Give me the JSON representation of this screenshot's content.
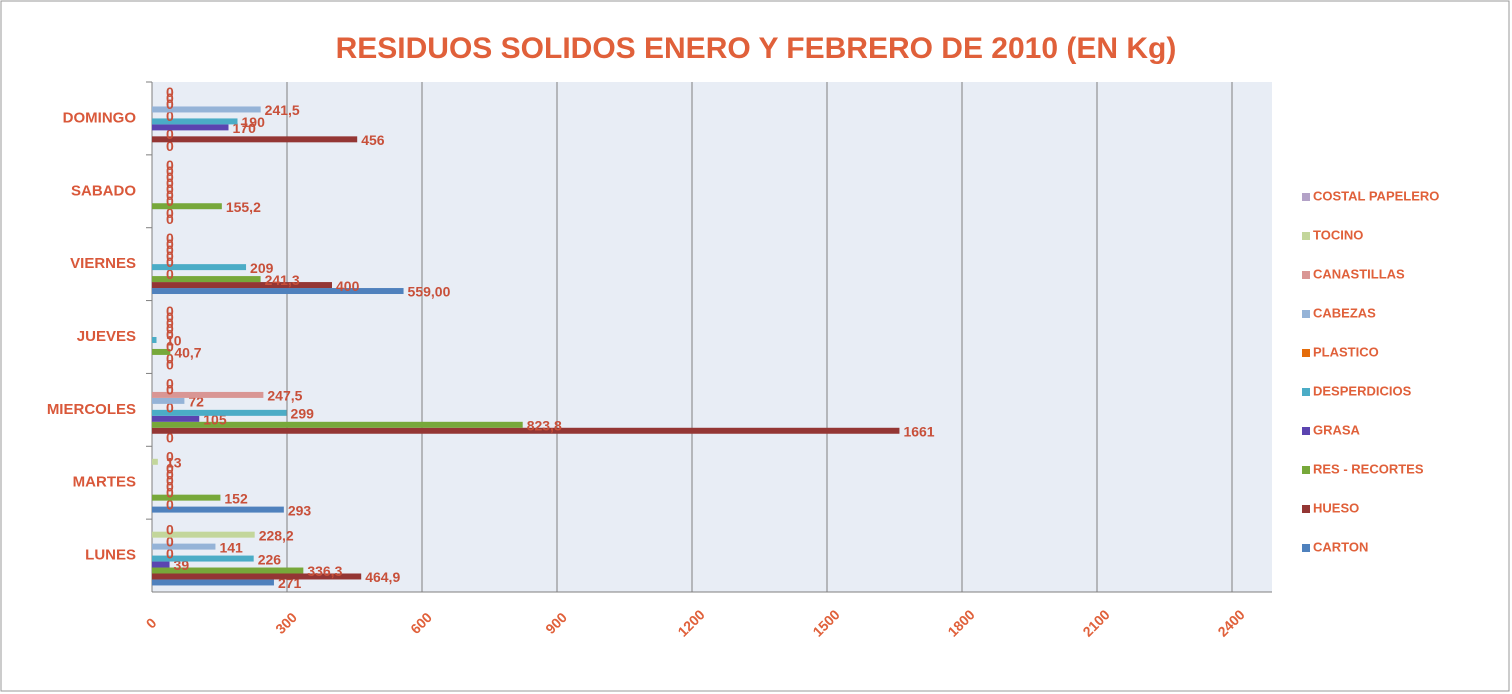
{
  "chart_data": {
    "type": "barh",
    "title": "RESIDUOS SOLIDOS ENERO Y FEBRERO DE 2010 (EN Kg)",
    "categories": [
      "LUNES",
      "MARTES",
      "MIERCOLES",
      "JUEVES",
      "VIERNES",
      "SABADO",
      "DOMINGO"
    ],
    "series": [
      {
        "name": "CARTON",
        "color": "#4f81bd",
        "values": [
          271,
          293,
          0,
          0,
          559,
          0,
          0
        ],
        "value_labels": [
          "271",
          "293",
          "0",
          "0",
          "559,00",
          "0",
          "0"
        ]
      },
      {
        "name": "HUESO",
        "color": "#943634",
        "values": [
          464.9,
          0,
          1661,
          0,
          400,
          0,
          456
        ],
        "value_labels": [
          "464,9",
          "0",
          "1661",
          "0",
          "400",
          "0",
          "456"
        ]
      },
      {
        "name": "RES - RECORTES",
        "color": "#77a83a",
        "values": [
          336.3,
          152,
          823.8,
          40.7,
          241.3,
          155.2,
          0
        ],
        "value_labels": [
          "336,3",
          "152",
          "823,8",
          "40,7",
          "241,3",
          "155,2",
          "0"
        ]
      },
      {
        "name": "GRASA",
        "color": "#5b44b0",
        "values": [
          39,
          0,
          105,
          0,
          0,
          0,
          170
        ],
        "value_labels": [
          "39",
          "0",
          "105",
          "0",
          "0",
          "0",
          "170"
        ]
      },
      {
        "name": "DESPERDICIOS",
        "color": "#4bacc6",
        "values": [
          226,
          0,
          299,
          10,
          209,
          0,
          190
        ],
        "value_labels": [
          "226",
          "0",
          "299",
          "10",
          "209",
          "0",
          "190"
        ]
      },
      {
        "name": "PLASTICO",
        "color": "#e46c0a",
        "values": [
          0,
          0,
          0,
          0,
          0,
          0,
          0
        ],
        "value_labels": [
          "0",
          "0",
          "0",
          "0",
          "0",
          "0",
          "0"
        ]
      },
      {
        "name": "CABEZAS",
        "color": "#95b3d7",
        "values": [
          141,
          0,
          72,
          0,
          0,
          0,
          241.5
        ],
        "value_labels": [
          "141",
          "0",
          "72",
          "0",
          "0",
          "0",
          "241,5"
        ]
      },
      {
        "name": "CANASTILLAS",
        "color": "#d99694",
        "values": [
          0,
          0,
          247.5,
          0,
          0,
          0,
          0
        ],
        "value_labels": [
          "0",
          "0",
          "247,5",
          "0",
          "0",
          "0",
          "0"
        ]
      },
      {
        "name": "TOCINO",
        "color": "#c3d69b",
        "values": [
          228.2,
          13,
          0,
          0,
          0,
          0,
          0
        ],
        "value_labels": [
          "228,2",
          "13",
          "0",
          "0",
          "0",
          "0",
          "0"
        ]
      },
      {
        "name": "COSTAL PAPELERO",
        "color": "#b3a2c7",
        "values": [
          0,
          0,
          0,
          0,
          0,
          0,
          0
        ],
        "value_labels": [
          "0",
          "0",
          "0",
          "0",
          "0",
          "0",
          "0"
        ]
      }
    ],
    "xlim": [
      0,
      2400
    ],
    "xticks": [
      0,
      300,
      600,
      900,
      1200,
      1500,
      1800,
      2100,
      2400
    ],
    "grid": true,
    "legend": "right"
  }
}
